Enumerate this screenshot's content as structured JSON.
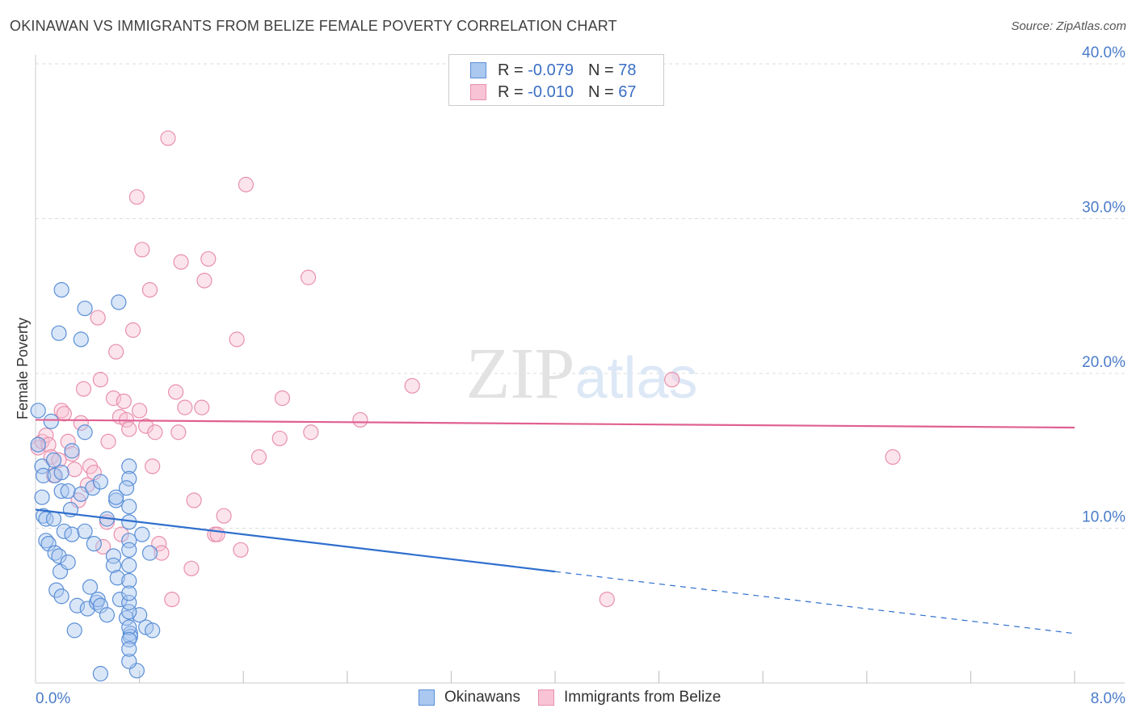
{
  "title": "OKINAWAN VS IMMIGRANTS FROM BELIZE FEMALE POVERTY CORRELATION CHART",
  "source": "Source: ZipAtlas.com",
  "colors": {
    "blue": "#5b8fd6",
    "blue_fill": "#aac8f0",
    "blue_line": "#2f6fce",
    "pink": "#e890ad",
    "pink_fill": "#f8c3d4",
    "pink_line": "#e06090",
    "axis_text": "#4a7cc9",
    "grid": "#dddddd"
  },
  "legend": {
    "rows": [
      {
        "r_label": "R =",
        "r_value": "-0.079",
        "n_label": "N =",
        "n_value": "78"
      },
      {
        "r_label": "R =",
        "r_value": "-0.010",
        "n_label": "N =",
        "n_value": "67"
      }
    ]
  },
  "bottom_legend": [
    "Okinawans",
    "Immigrants from Belize"
  ],
  "watermark": "ZIPatlas",
  "chart_data": {
    "type": "scatter",
    "title": "OKINAWAN VS IMMIGRANTS FROM BELIZE FEMALE POVERTY CORRELATION CHART",
    "xlabel": "",
    "ylabel": "Female Poverty",
    "xlim": [
      0,
      8.4
    ],
    "ylim": [
      0,
      40
    ],
    "x_tick_labels": [
      {
        "value": 0,
        "label": "0.0%"
      },
      {
        "value": 8.0,
        "label": "8.0%"
      }
    ],
    "x_minor_ticks": [
      0.8,
      1.6,
      2.4,
      3.2,
      4.0,
      4.8,
      5.6,
      6.4,
      7.2,
      8.0
    ],
    "y_ticks": [
      {
        "value": 10,
        "label": "10.0%"
      },
      {
        "value": 20,
        "label": "20.0%"
      },
      {
        "value": 30,
        "label": "30.0%"
      },
      {
        "value": 40,
        "label": "40.0%"
      }
    ],
    "grid": true,
    "series": [
      {
        "name": "Okinawans",
        "color": "blue",
        "trend": {
          "x0": 0,
          "y0": 11.2,
          "x1": 4.0,
          "y1": 7.2,
          "dash_to_x": 8.0,
          "dash_to_y": 3.2
        },
        "points": [
          [
            0.02,
            17.6
          ],
          [
            0.02,
            15.4
          ],
          [
            0.05,
            14.0
          ],
          [
            0.06,
            13.4
          ],
          [
            0.05,
            12.0
          ],
          [
            0.06,
            10.8
          ],
          [
            0.08,
            10.6
          ],
          [
            0.08,
            9.2
          ],
          [
            0.1,
            9.0
          ],
          [
            0.12,
            16.9
          ],
          [
            0.14,
            14.4
          ],
          [
            0.15,
            13.4
          ],
          [
            0.14,
            10.6
          ],
          [
            0.15,
            8.4
          ],
          [
            0.16,
            6.0
          ],
          [
            0.18,
            22.6
          ],
          [
            0.18,
            8.2
          ],
          [
            0.19,
            7.2
          ],
          [
            0.2,
            13.6
          ],
          [
            0.2,
            12.4
          ],
          [
            0.2,
            5.6
          ],
          [
            0.25,
            7.8
          ],
          [
            0.25,
            12.4
          ],
          [
            0.22,
            9.8
          ],
          [
            0.2,
            25.4
          ],
          [
            0.28,
            15.0
          ],
          [
            0.28,
            9.6
          ],
          [
            0.3,
            3.4
          ],
          [
            0.32,
            5.0
          ],
          [
            0.27,
            11.2
          ],
          [
            0.35,
            22.2
          ],
          [
            0.38,
            24.2
          ],
          [
            0.38,
            16.2
          ],
          [
            0.35,
            12.2
          ],
          [
            0.38,
            9.8
          ],
          [
            0.4,
            4.8
          ],
          [
            0.42,
            6.2
          ],
          [
            0.44,
            12.6
          ],
          [
            0.45,
            9.0
          ],
          [
            0.47,
            5.2
          ],
          [
            0.48,
            5.4
          ],
          [
            0.5,
            13.0
          ],
          [
            0.5,
            5.0
          ],
          [
            0.55,
            4.4
          ],
          [
            0.55,
            10.6
          ],
          [
            0.6,
            8.2
          ],
          [
            0.6,
            7.6
          ],
          [
            0.62,
            11.8
          ],
          [
            0.63,
            6.8
          ],
          [
            0.65,
            5.4
          ],
          [
            0.7,
            4.2
          ],
          [
            0.73,
            3.2
          ],
          [
            0.73,
            3.0
          ],
          [
            0.5,
            0.6
          ],
          [
            0.64,
            24.6
          ],
          [
            0.72,
            14.0
          ],
          [
            0.72,
            13.2
          ],
          [
            0.8,
            4.4
          ],
          [
            0.82,
            9.6
          ],
          [
            0.85,
            3.6
          ],
          [
            0.88,
            8.4
          ],
          [
            0.9,
            3.4
          ],
          [
            0.7,
            12.6
          ],
          [
            0.72,
            11.4
          ],
          [
            0.72,
            10.4
          ],
          [
            0.72,
            7.6
          ],
          [
            0.72,
            4.6
          ],
          [
            0.72,
            5.2
          ],
          [
            0.72,
            6.6
          ],
          [
            0.62,
            12.0
          ],
          [
            0.78,
            0.8
          ],
          [
            0.72,
            3.6
          ],
          [
            0.72,
            2.8
          ],
          [
            0.72,
            1.4
          ],
          [
            0.72,
            2.2
          ],
          [
            0.72,
            9.2
          ],
          [
            0.72,
            8.6
          ],
          [
            0.72,
            5.8
          ]
        ]
      },
      {
        "name": "Immigrants from Belize",
        "color": "pink",
        "trend": {
          "x0": 0,
          "y0": 17.0,
          "x1": 8.0,
          "y1": 16.5
        },
        "points": [
          [
            0.02,
            15.2
          ],
          [
            0.05,
            15.6
          ],
          [
            0.08,
            16.0
          ],
          [
            0.1,
            15.4
          ],
          [
            0.12,
            14.6
          ],
          [
            0.14,
            13.4
          ],
          [
            0.18,
            14.4
          ],
          [
            0.2,
            17.6
          ],
          [
            0.22,
            17.4
          ],
          [
            0.25,
            15.6
          ],
          [
            0.28,
            14.8
          ],
          [
            0.3,
            13.8
          ],
          [
            0.33,
            11.8
          ],
          [
            0.35,
            16.8
          ],
          [
            0.37,
            19.0
          ],
          [
            0.4,
            12.8
          ],
          [
            0.42,
            14.0
          ],
          [
            0.45,
            13.6
          ],
          [
            0.48,
            23.6
          ],
          [
            0.5,
            19.6
          ],
          [
            0.52,
            8.8
          ],
          [
            0.55,
            10.4
          ],
          [
            0.56,
            15.6
          ],
          [
            0.6,
            18.4
          ],
          [
            0.62,
            21.4
          ],
          [
            0.65,
            17.2
          ],
          [
            0.66,
            9.6
          ],
          [
            0.68,
            18.2
          ],
          [
            0.7,
            17.0
          ],
          [
            0.72,
            16.4
          ],
          [
            0.75,
            22.8
          ],
          [
            0.78,
            31.4
          ],
          [
            0.8,
            17.6
          ],
          [
            0.82,
            28.0
          ],
          [
            0.85,
            16.6
          ],
          [
            0.88,
            25.4
          ],
          [
            0.9,
            14.0
          ],
          [
            0.92,
            16.2
          ],
          [
            0.95,
            9.0
          ],
          [
            0.97,
            8.4
          ],
          [
            1.02,
            35.2
          ],
          [
            1.05,
            5.4
          ],
          [
            1.08,
            18.8
          ],
          [
            1.1,
            16.2
          ],
          [
            1.12,
            27.2
          ],
          [
            1.15,
            17.8
          ],
          [
            1.2,
            7.4
          ],
          [
            1.22,
            11.8
          ],
          [
            1.28,
            17.8
          ],
          [
            1.3,
            26.0
          ],
          [
            1.33,
            27.4
          ],
          [
            1.38,
            9.6
          ],
          [
            1.4,
            9.6
          ],
          [
            1.45,
            10.8
          ],
          [
            1.55,
            22.2
          ],
          [
            1.58,
            8.6
          ],
          [
            1.62,
            32.2
          ],
          [
            1.72,
            14.6
          ],
          [
            1.88,
            15.8
          ],
          [
            1.9,
            18.4
          ],
          [
            2.1,
            26.2
          ],
          [
            2.12,
            16.2
          ],
          [
            2.5,
            17.0
          ],
          [
            2.9,
            19.2
          ],
          [
            4.4,
            5.4
          ],
          [
            4.9,
            19.6
          ],
          [
            6.6,
            14.6
          ]
        ]
      }
    ]
  }
}
